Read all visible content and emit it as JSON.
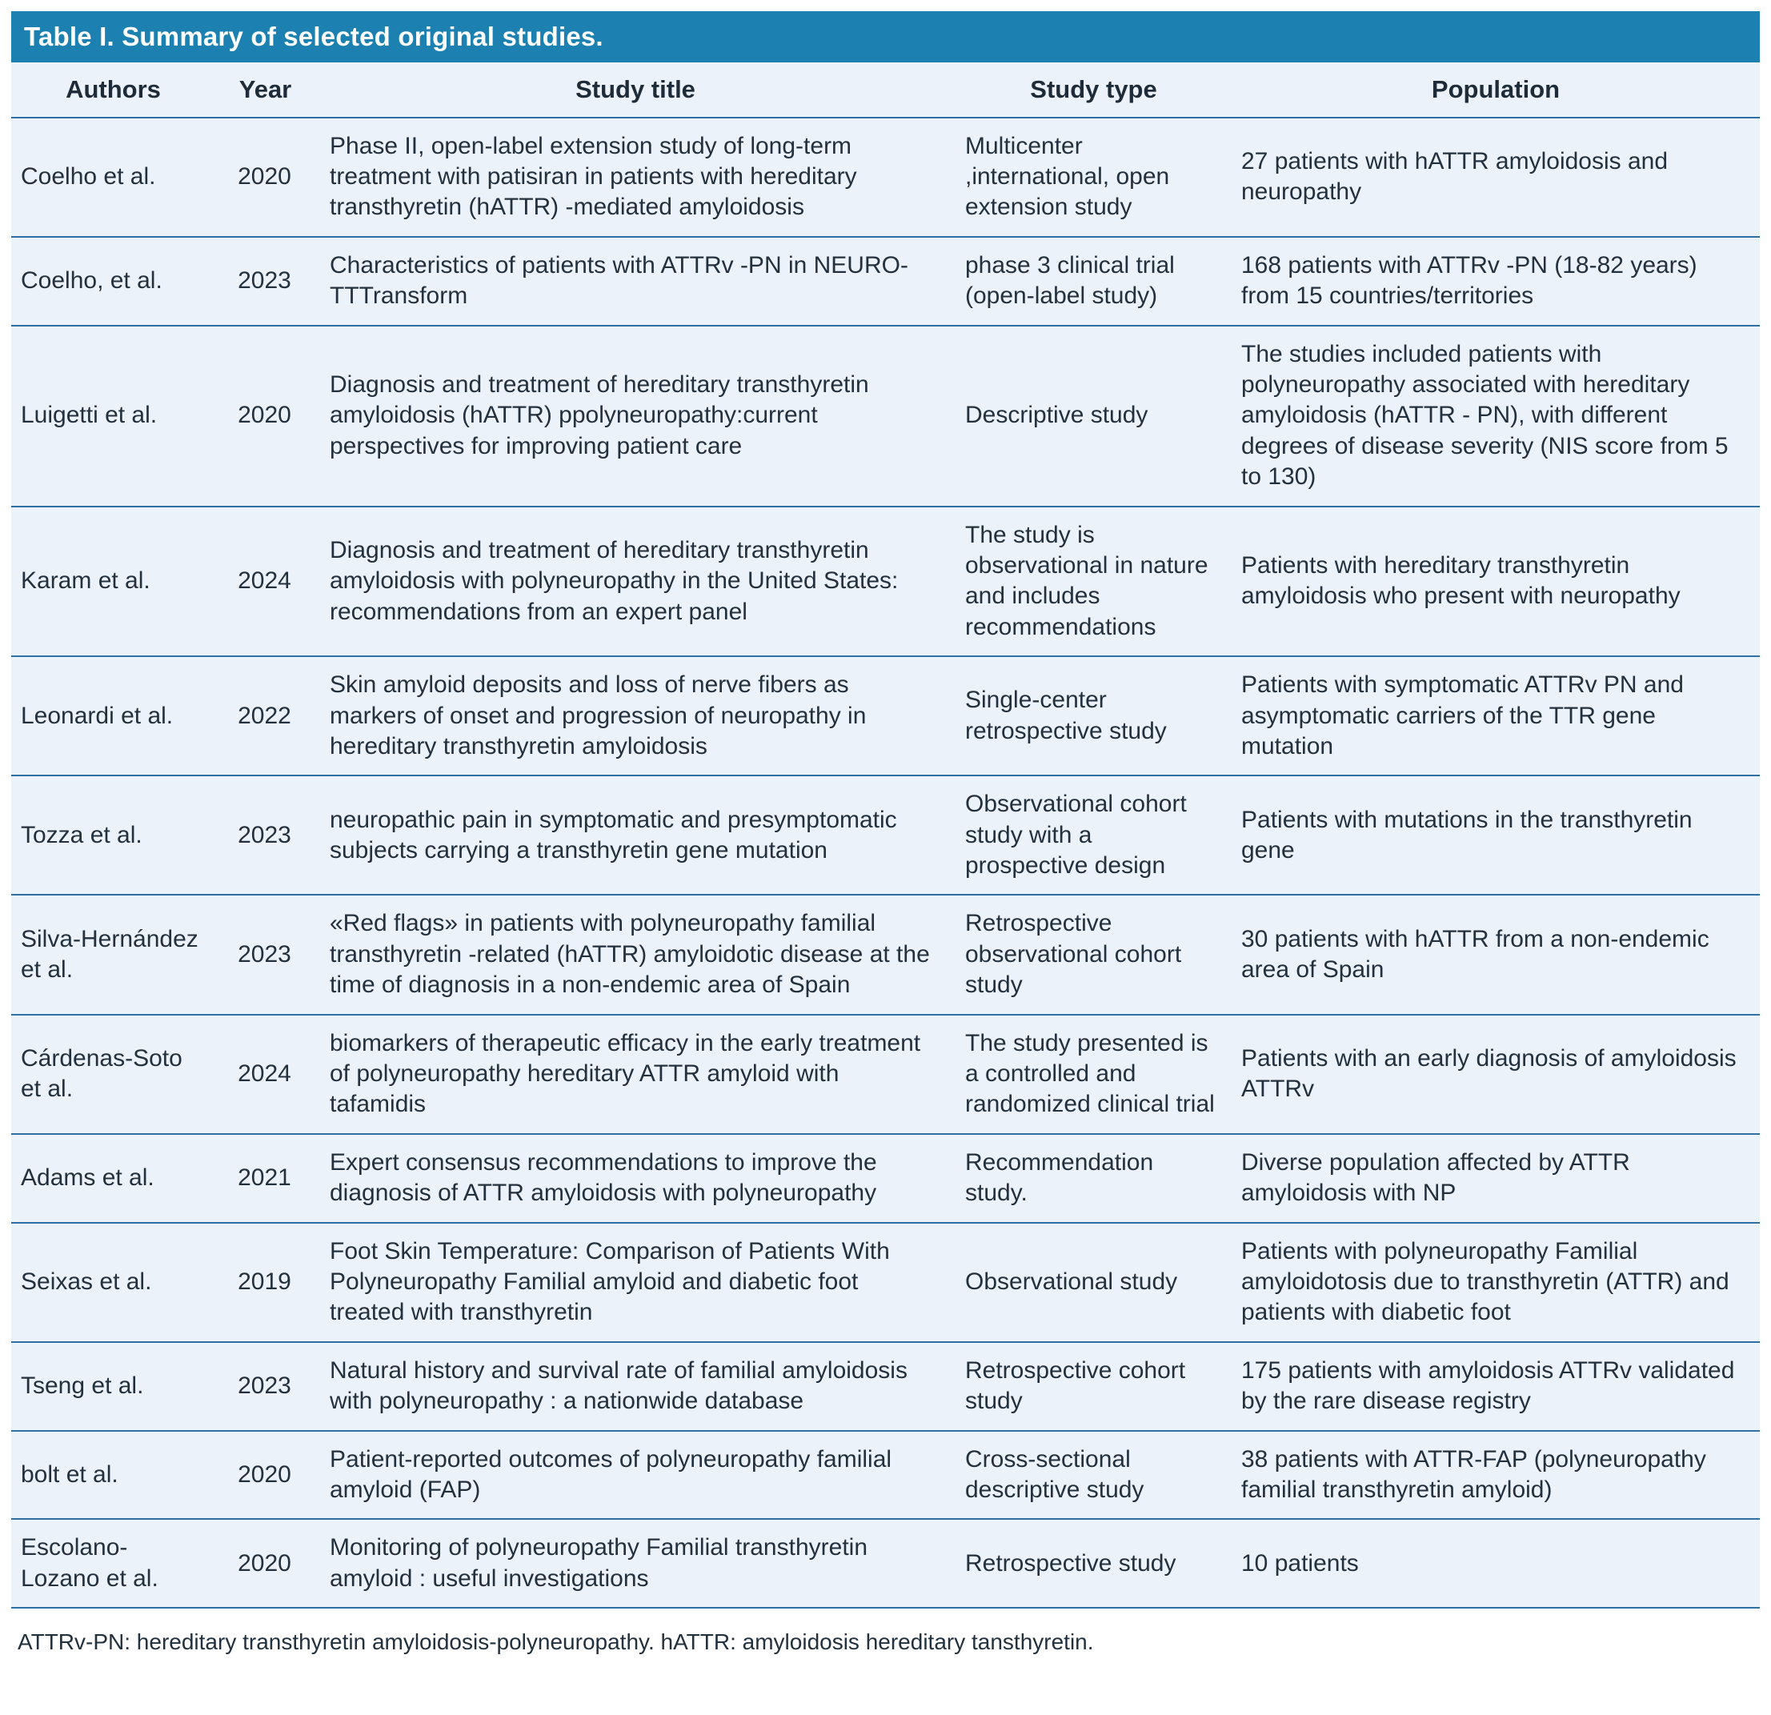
{
  "table": {
    "title": "Table I. Summary of selected original studies.",
    "columns": [
      "Authors",
      "Year",
      "Study title",
      "Study type",
      "Population"
    ],
    "rows": [
      {
        "authors": "Coelho et al.",
        "year": "2020",
        "title": "Phase II, open-label extension study of long-term treatment with patisiran in patients with hereditary transthyretin (hATTR) -mediated amyloidosis",
        "type": "Multicenter ,international, open extension study",
        "population": "27 patients with hATTR amyloidosis and neuropathy"
      },
      {
        "authors": "Coelho, et al.",
        "year": "2023",
        "title": "Characteristics of patients with ATTRv -PN in NEURO- TTTransform",
        "type": "phase 3 clinical trial (open-label study)",
        "population": "168 patients with ATTRv -PN (18-82 years) from 15 countries/territories"
      },
      {
        "authors": "Luigetti et al.",
        "year": "2020",
        "title": "Diagnosis and treatment of hereditary transthyretin amyloidosis (hATTR) ppolyneuropathy:current perspectives for improving patient care",
        "type": "Descriptive study",
        "population": "The studies included patients with polyneuropathy associated with hereditary amyloidosis (hATTR - PN), with different degrees of disease severity (NIS score from 5 to 130)"
      },
      {
        "authors": "Karam et al.",
        "year": "2024",
        "title": "Diagnosis and treatment of hereditary transthyretin amyloidosis with polyneuropathy in the United States: recommendations from an expert panel",
        "type": "The study is observational in nature and includes recommendations",
        "population": "Patients with hereditary transthyretin amyloidosis who present with neuropathy"
      },
      {
        "authors": "Leonardi et al.",
        "year": "2022",
        "title": "Skin amyloid deposits and loss of nerve fibers as markers of onset and progression of neuropathy in hereditary transthyretin amyloidosis",
        "type": "Single-center retrospective study",
        "population": "Patients with symptomatic ATTRv PN and asymptomatic carriers of the TTR gene mutation"
      },
      {
        "authors": "Tozza et al.",
        "year": "2023",
        "title": "neuropathic pain in symptomatic and presymptomatic subjects carrying a transthyretin gene mutation",
        "type": "Observational cohort study with a prospective design",
        "population": "Patients with mutations in the transthyretin gene"
      },
      {
        "authors": "Silva-Hernández et al.",
        "year": "2023",
        "title": "«Red flags» in patients with polyneuropathy familial transthyretin -related (hATTR) amyloidotic disease at the time of diagnosis in a non-endemic area of Spain",
        "type": "Retrospective observational cohort study",
        "population": "30 patients with hATTR from a non-endemic area of Spain"
      },
      {
        "authors": "Cárdenas-Soto et al.",
        "year": "2024",
        "title": "biomarkers of therapeutic efficacy in the early treatment of polyneuropathy hereditary ATTR amyloid with tafamidis",
        "type": "The study presented is a controlled and randomized clinical trial",
        "population": "Patients with an early diagnosis of amyloidosis ATTRv"
      },
      {
        "authors": "Adams et al.",
        "year": "2021",
        "title": "Expert consensus recommendations to improve the diagnosis of ATTR amyloidosis with polyneuropathy",
        "type": "Recommendation study.",
        "population": "Diverse population affected by ATTR amyloidosis with NP"
      },
      {
        "authors": "Seixas et al.",
        "year": "2019",
        "title": "Foot Skin Temperature: Comparison of Patients With Polyneuropathy Familial amyloid and diabetic foot treated with transthyretin",
        "type": "Observational study",
        "population": "Patients with polyneuropathy Familial amyloidotosis due to transthyretin (ATTR) and patients with diabetic foot"
      },
      {
        "authors": "Tseng et al.",
        "year": "2023",
        "title": "Natural history and survival rate of familial amyloidosis with polyneuropathy : a nationwide database",
        "type": "Retrospective cohort study",
        "population": "175 patients with amyloidosis ATTRv validated by the rare disease registry"
      },
      {
        "authors": "bolt et al.",
        "year": "2020",
        "title": "Patient-reported outcomes of polyneuropathy familial amyloid (FAP)",
        "type": "Cross-sectional descriptive study",
        "population": "38 patients with ATTR-FAP (polyneuropathy familial transthyretin amyloid)"
      },
      {
        "authors": "Escolano-Lozano et al.",
        "year": "2020",
        "title": "Monitoring of polyneuropathy Familial transthyretin amyloid : useful investigations",
        "type": "Retrospective study",
        "population": "10 patients"
      }
    ],
    "footnote": "ATTRv-PN: hereditary transthyretin amyloidosis-polyneuropathy. hATTR: amyloidosis hereditary tansthyretin."
  },
  "colors": {
    "header_bg": "#1c81b0",
    "row_bg": "#ecf2f9",
    "divider": "#2e6fa5",
    "text": "#23303e",
    "title_text": "#ffffff"
  }
}
